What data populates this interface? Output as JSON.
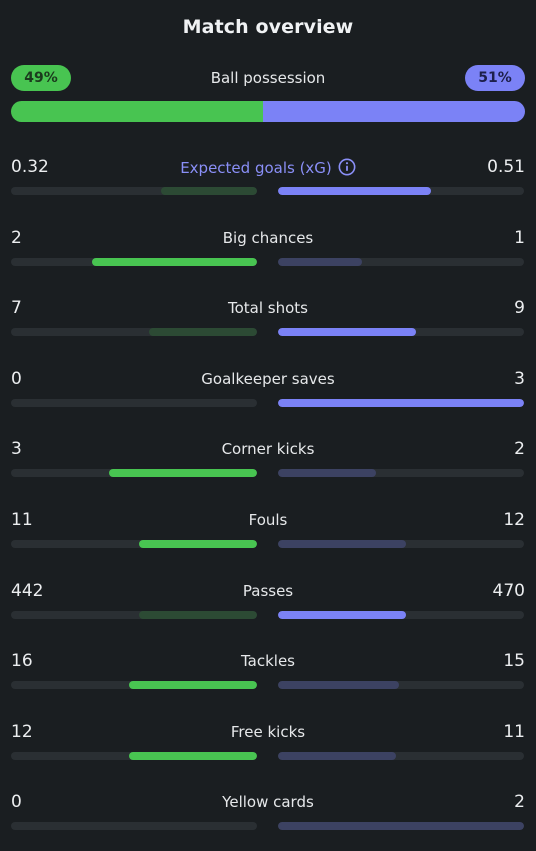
{
  "title": "Match overview",
  "possession": {
    "label": "Ball possession",
    "home": "49%",
    "away": "51%",
    "home_fraction": 0.49,
    "away_fraction": 0.51
  },
  "colors": {
    "home_win": "#48c451",
    "home_lose": "#2c4a34",
    "away_win": "#7b82f6",
    "away_lose": "#3c4262",
    "track": "#2a2f33",
    "xg_label": "#8a8ff7"
  },
  "stats": [
    {
      "label": "Expected goals (xG)",
      "home": "0.32",
      "away": "0.51",
      "home_fill": 0.39,
      "away_fill": 0.62,
      "leader": "away",
      "has_info": true
    },
    {
      "label": "Big chances",
      "home": "2",
      "away": "1",
      "home_fill": 0.67,
      "away_fill": 0.34,
      "leader": "home"
    },
    {
      "label": "Total shots",
      "home": "7",
      "away": "9",
      "home_fill": 0.44,
      "away_fill": 0.56,
      "leader": "away"
    },
    {
      "label": "Goalkeeper saves",
      "home": "0",
      "away": "3",
      "home_fill": 0.0,
      "away_fill": 1.0,
      "leader": "away"
    },
    {
      "label": "Corner kicks",
      "home": "3",
      "away": "2",
      "home_fill": 0.6,
      "away_fill": 0.4,
      "leader": "home"
    },
    {
      "label": "Fouls",
      "home": "11",
      "away": "12",
      "home_fill": 0.48,
      "away_fill": 0.52,
      "leader": "home"
    },
    {
      "label": "Passes",
      "home": "442",
      "away": "470",
      "home_fill": 0.48,
      "away_fill": 0.52,
      "leader": "away"
    },
    {
      "label": "Tackles",
      "home": "16",
      "away": "15",
      "home_fill": 0.52,
      "away_fill": 0.49,
      "leader": "home"
    },
    {
      "label": "Free kicks",
      "home": "12",
      "away": "11",
      "home_fill": 0.52,
      "away_fill": 0.48,
      "leader": "home"
    },
    {
      "label": "Yellow cards",
      "home": "0",
      "away": "2",
      "home_fill": 0.0,
      "away_fill": 1.0,
      "leader": "home"
    }
  ]
}
